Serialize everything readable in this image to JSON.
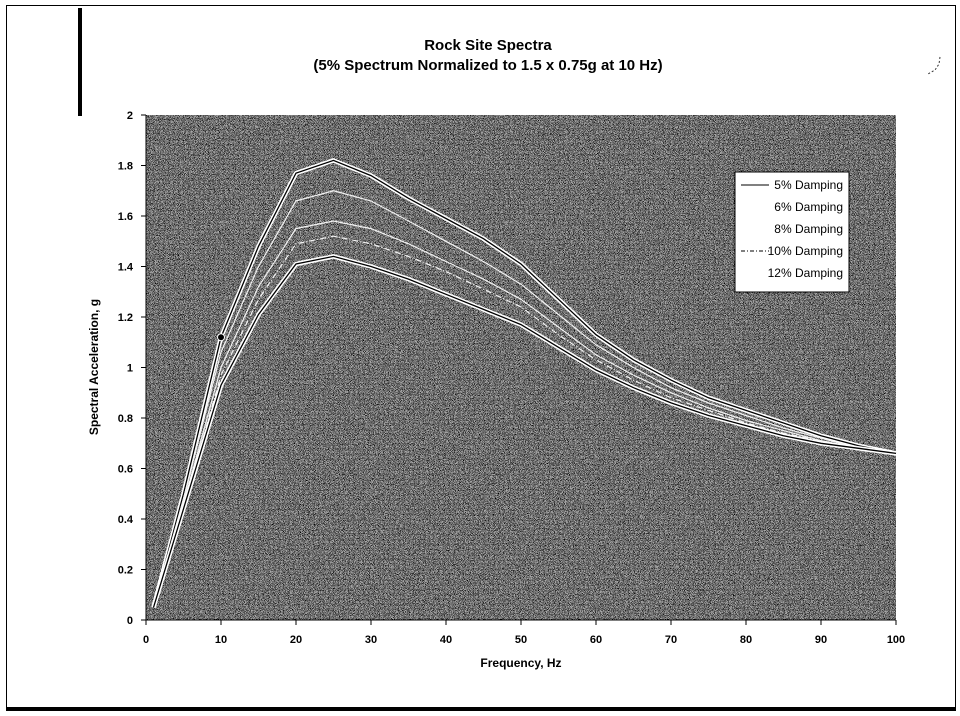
{
  "chart_data": {
    "type": "line",
    "title": "Rock Site Spectra",
    "subtitle": "(5% Spectrum Normalized to 1.5 x 0.75g at 10 Hz)",
    "xlabel": "Frequency, Hz",
    "ylabel": "Spectral Acceleration, g",
    "xlim": [
      0,
      100
    ],
    "ylim": [
      0,
      2
    ],
    "xticks": [
      "0",
      "10",
      "20",
      "30",
      "40",
      "50",
      "60",
      "70",
      "80",
      "90",
      "100"
    ],
    "yticks": [
      "0",
      "0.2",
      "0.4",
      "0.6",
      "0.8",
      "1",
      "1.2",
      "1.4",
      "1.6",
      "1.8",
      "2"
    ],
    "grid": false,
    "legend_position": "right",
    "plot_background": "speckled gray",
    "x": [
      1,
      5,
      10,
      15,
      20,
      25,
      30,
      35,
      40,
      45,
      50,
      55,
      60,
      65,
      70,
      75,
      80,
      85,
      90,
      95,
      100
    ],
    "series": [
      {
        "name": "5% Damping",
        "style": "solid",
        "values": [
          0.05,
          0.5,
          1.12,
          1.48,
          1.77,
          1.82,
          1.76,
          1.67,
          1.59,
          1.51,
          1.41,
          1.27,
          1.13,
          1.03,
          0.95,
          0.88,
          0.83,
          0.78,
          0.73,
          0.69,
          0.66
        ]
      },
      {
        "name": "6% Damping",
        "style": "solid",
        "values": [
          0.05,
          0.48,
          1.06,
          1.4,
          1.66,
          1.7,
          1.66,
          1.58,
          1.5,
          1.42,
          1.33,
          1.21,
          1.09,
          1.0,
          0.92,
          0.86,
          0.81,
          0.76,
          0.72,
          0.68,
          0.66
        ]
      },
      {
        "name": "8% Damping",
        "style": "solid",
        "values": [
          0.05,
          0.46,
          1.0,
          1.32,
          1.55,
          1.58,
          1.55,
          1.49,
          1.42,
          1.35,
          1.27,
          1.16,
          1.05,
          0.97,
          0.9,
          0.84,
          0.79,
          0.75,
          0.71,
          0.68,
          0.66
        ]
      },
      {
        "name": "10% Damping",
        "style": "dashdot",
        "values": [
          0.05,
          0.45,
          0.97,
          1.27,
          1.49,
          1.52,
          1.49,
          1.44,
          1.38,
          1.31,
          1.24,
          1.13,
          1.03,
          0.95,
          0.88,
          0.83,
          0.78,
          0.74,
          0.71,
          0.68,
          0.66
        ]
      },
      {
        "name": "12% Damping",
        "style": "solid",
        "values": [
          0.05,
          0.44,
          0.93,
          1.21,
          1.41,
          1.44,
          1.4,
          1.35,
          1.29,
          1.23,
          1.17,
          1.08,
          0.99,
          0.92,
          0.86,
          0.81,
          0.77,
          0.73,
          0.7,
          0.68,
          0.66
        ]
      }
    ],
    "highlight_point": {
      "x": 10,
      "y": 1.12
    }
  }
}
